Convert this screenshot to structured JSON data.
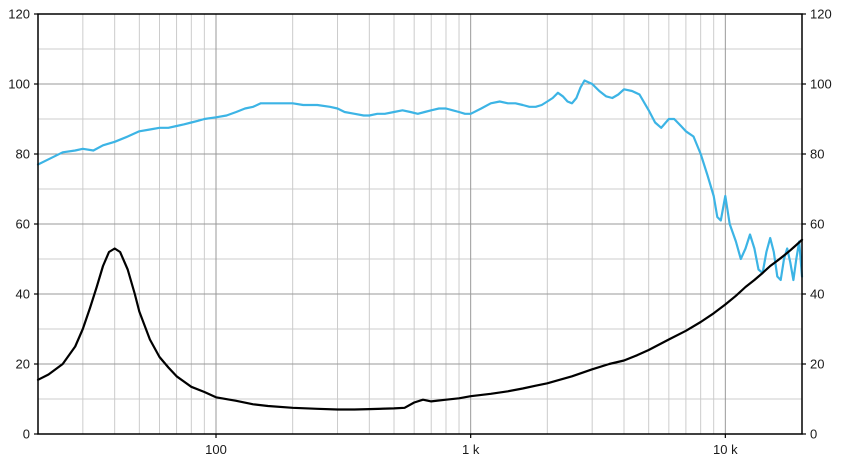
{
  "chart_data": {
    "type": "line",
    "title": "",
    "xlabel": "",
    "ylabel": "",
    "xscale": "log",
    "xlim": [
      20,
      20000
    ],
    "ylim": [
      0,
      120
    ],
    "grid": true,
    "legend": "none",
    "y_major_ticks": [
      0,
      20,
      40,
      60,
      80,
      100,
      120
    ],
    "y_minor_step": 10,
    "x_major_ticks": [
      {
        "value": 100,
        "label": "100"
      },
      {
        "value": 1000,
        "label": "1 k"
      },
      {
        "value": 10000,
        "label": "10 k"
      }
    ],
    "colors": {
      "background": "#ffffff",
      "grid_minor": "#cccccc",
      "grid_major": "#999999",
      "frame": "#000000",
      "spl_curve": "#3cb4e5",
      "impedance_curve": "#000000"
    },
    "series": [
      {
        "name": "frequency-response",
        "color": "#3cb4e5",
        "x": [
          20,
          22,
          25,
          28,
          30,
          33,
          36,
          40,
          45,
          50,
          55,
          60,
          65,
          70,
          75,
          80,
          85,
          90,
          100,
          110,
          120,
          130,
          140,
          150,
          160,
          180,
          200,
          220,
          250,
          280,
          300,
          320,
          350,
          380,
          400,
          430,
          460,
          500,
          540,
          580,
          620,
          660,
          700,
          750,
          800,
          850,
          900,
          950,
          1000,
          1100,
          1200,
          1300,
          1400,
          1500,
          1600,
          1700,
          1800,
          1900,
          2000,
          2100,
          2200,
          2300,
          2400,
          2500,
          2600,
          2700,
          2800,
          3000,
          3200,
          3400,
          3600,
          3800,
          4000,
          4300,
          4600,
          5000,
          5300,
          5600,
          6000,
          6300,
          6700,
          7000,
          7500,
          8000,
          8500,
          9000,
          9300,
          9600,
          10000,
          10400,
          11000,
          11500,
          12000,
          12500,
          13000,
          13500,
          14000,
          14500,
          15000,
          15500,
          16000,
          16500,
          17000,
          17500,
          18000,
          18500,
          19000,
          19500,
          20000
        ],
        "y": [
          77,
          78.5,
          80.5,
          81,
          81.5,
          81,
          82.5,
          83.5,
          85,
          86.5,
          87,
          87.5,
          87.5,
          88,
          88.5,
          89,
          89.5,
          90,
          90.5,
          91,
          92,
          93,
          93.5,
          94.5,
          94.5,
          94.5,
          94.5,
          94,
          94,
          93.5,
          93,
          92,
          91.5,
          91,
          91,
          91.5,
          91.5,
          92,
          92.5,
          92,
          91.5,
          92,
          92.5,
          93,
          93,
          92.5,
          92,
          91.5,
          91.5,
          93,
          94.5,
          95,
          94.5,
          94.5,
          94,
          93.5,
          93.5,
          94,
          95,
          96,
          97.5,
          96.5,
          95,
          94.5,
          96,
          99,
          101,
          100,
          98,
          96.5,
          96,
          97,
          98.5,
          98,
          97,
          92.5,
          89,
          87.5,
          90,
          90,
          88,
          86.5,
          85,
          80,
          74,
          68,
          62,
          61,
          68,
          60,
          55,
          50,
          53,
          57,
          53,
          47,
          46,
          52,
          56,
          52,
          45,
          44,
          50,
          53,
          49,
          44,
          50,
          55,
          45
        ]
      },
      {
        "name": "impedance",
        "color": "#000000",
        "x": [
          20,
          22,
          25,
          28,
          30,
          32,
          34,
          36,
          38,
          40,
          42,
          45,
          48,
          50,
          55,
          60,
          65,
          70,
          80,
          90,
          100,
          120,
          140,
          160,
          200,
          250,
          300,
          350,
          400,
          500,
          550,
          600,
          650,
          700,
          800,
          900,
          1000,
          1200,
          1400,
          1600,
          1800,
          2000,
          2500,
          3000,
          3500,
          4000,
          4500,
          5000,
          6000,
          7000,
          8000,
          9000,
          10000,
          11000,
          12000,
          13000,
          14000,
          15000,
          16000,
          17000,
          18000,
          19000,
          20000
        ],
        "y": [
          15.5,
          17,
          20,
          25,
          30,
          36,
          42,
          48,
          52,
          53,
          52,
          47,
          40,
          35,
          27,
          22,
          19,
          16.5,
          13.5,
          12,
          10.5,
          9.5,
          8.5,
          8,
          7.5,
          7.2,
          7,
          7,
          7.1,
          7.3,
          7.5,
          9,
          9.8,
          9.3,
          9.8,
          10.2,
          10.8,
          11.5,
          12.2,
          13,
          13.8,
          14.5,
          16.5,
          18.5,
          20,
          21,
          22.5,
          24,
          27,
          29.5,
          32,
          34.5,
          37,
          39.5,
          42,
          44,
          46,
          48,
          49.5,
          51,
          52.5,
          54,
          55.5
        ]
      }
    ]
  }
}
